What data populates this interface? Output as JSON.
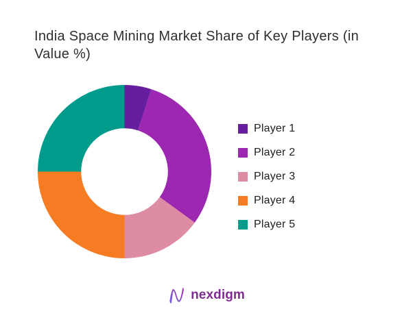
{
  "title": {
    "text": "India Space Mining Market Share of Key Players (in Value %)",
    "color": "#2e2e2e"
  },
  "chart_data": {
    "type": "pie",
    "subtype": "donut",
    "title": "India Space Mining Market Share of Key Players (in Value %)",
    "categories": [
      "Player 1",
      "Player 2",
      "Player 3",
      "Player 4",
      "Player 5"
    ],
    "values": [
      5,
      30,
      15,
      25,
      25
    ],
    "unit": "percent of market value",
    "colors": [
      "#661d9e",
      "#9c27b0",
      "#de8ba4",
      "#f57c22",
      "#009b8a"
    ],
    "start_angle_deg": 0,
    "clockwise": true,
    "inner_radius_ratio": 0.5,
    "legend_position": "right",
    "data_labels": false,
    "background": "#ffffff"
  },
  "legend": {
    "items": [
      {
        "label": "Player 1",
        "color": "#661d9e"
      },
      {
        "label": "Player 2",
        "color": "#9c27b0"
      },
      {
        "label": "Player 3",
        "color": "#de8ba4"
      },
      {
        "label": "Player 4",
        "color": "#f57c22"
      },
      {
        "label": "Player 5",
        "color": "#009b8a"
      }
    ]
  },
  "footer": {
    "logo_text": "nexdigm",
    "logo_text_color": "#7e2c8f",
    "logo_icon": "n-wave-icon",
    "logo_icon_gradient": [
      "#5b3fd4",
      "#a32eb4"
    ]
  }
}
